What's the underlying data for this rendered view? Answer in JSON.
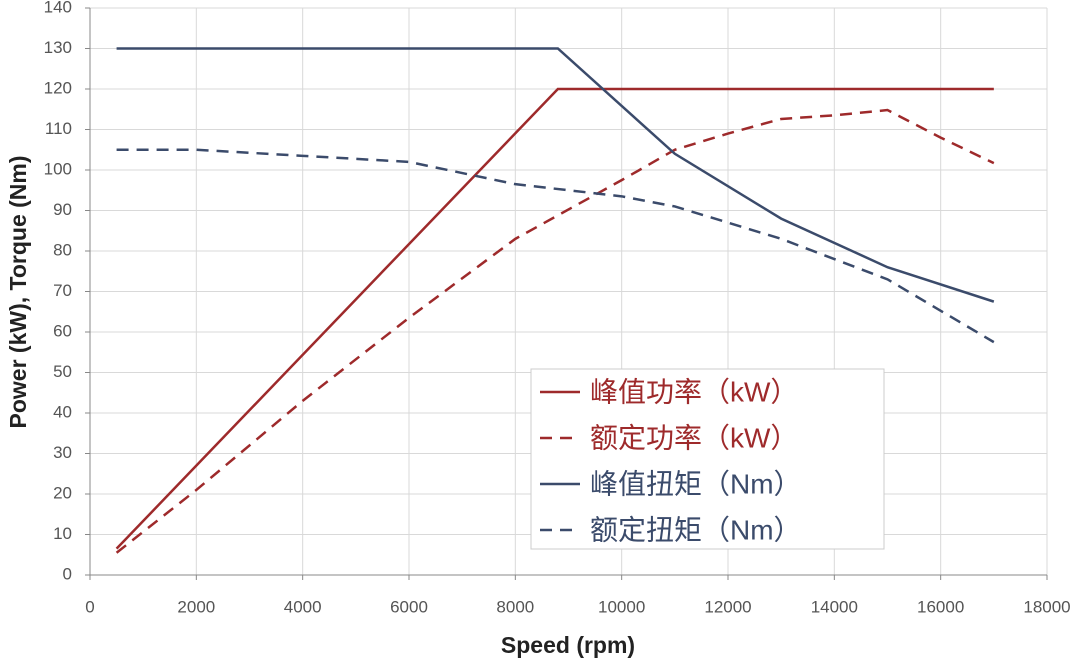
{
  "chart_data": {
    "type": "line",
    "xlabel": "Speed (rpm)",
    "ylabel": "Power (kW), Torque (Nm)",
    "xlim": [
      0,
      18000
    ],
    "xticks": [
      0,
      2000,
      4000,
      6000,
      8000,
      10000,
      12000,
      14000,
      16000,
      18000
    ],
    "ylim": [
      0,
      140
    ],
    "yticks": [
      0,
      10,
      20,
      30,
      40,
      50,
      60,
      70,
      80,
      90,
      100,
      110,
      120,
      130,
      140
    ],
    "grid": true,
    "series": [
      {
        "name": "峰值功率（kW）",
        "color": "#9e2a2b",
        "line_style": "solid",
        "x": [
          500,
          8800,
          17000
        ],
        "values": [
          6.5,
          120,
          120
        ]
      },
      {
        "name": "额定功率（kW）",
        "color": "#9e2a2b",
        "line_style": "dashed",
        "x": [
          500,
          2000,
          4000,
          6000,
          8000,
          10000,
          11000,
          12000,
          13000,
          14000,
          15000,
          16000,
          17000
        ],
        "values": [
          5.5,
          21,
          43,
          63.5,
          83,
          97.5,
          105,
          109,
          112.6,
          113.5,
          114.8,
          108,
          101.7
        ]
      },
      {
        "name": "峰值扭矩（Nm）",
        "color": "#3b4b6b",
        "line_style": "solid",
        "x": [
          500,
          8800,
          11000,
          13000,
          15000,
          17000
        ],
        "values": [
          130,
          130,
          104,
          88,
          76,
          67.5
        ]
      },
      {
        "name": "额定扭矩（Nm）",
        "color": "#3b4b6b",
        "line_style": "dashed",
        "x": [
          500,
          2000,
          4000,
          6000,
          8000,
          10000,
          11000,
          13000,
          15000,
          17000
        ],
        "values": [
          105,
          105,
          103.5,
          102,
          96.5,
          93.5,
          91,
          83,
          73,
          57.5
        ]
      }
    ]
  }
}
